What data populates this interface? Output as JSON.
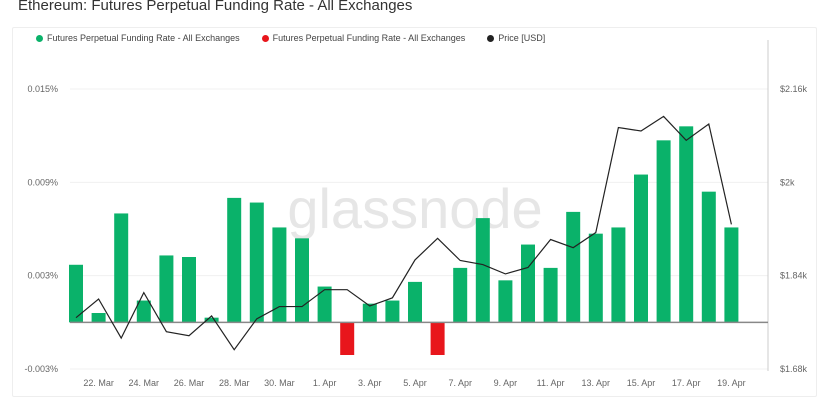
{
  "title": "Ethereum: Futures Perpetual Funding Rate - All Exchanges",
  "watermark": "glassnode",
  "chart_data": {
    "type": "bar",
    "title": "Ethereum: Futures Perpetual Funding Rate - All Exchanges",
    "legend": [
      {
        "name": "Futures Perpetual Funding Rate - All Exchanges",
        "color": "#0ab26a"
      },
      {
        "name": "Futures Perpetual Funding Rate - All Exchanges",
        "color": "#e8161c"
      },
      {
        "name": "Price [USD]",
        "color": "#222222"
      }
    ],
    "legend_placement": "top-left",
    "x": [
      "21 Mar",
      "22 Mar",
      "23 Mar",
      "24 Mar",
      "25 Mar",
      "26 Mar",
      "27 Mar",
      "28 Mar",
      "29 Mar",
      "30 Mar",
      "31 Mar",
      "1 Apr",
      "2 Apr",
      "3 Apr",
      "4 Apr",
      "5 Apr",
      "6 Apr",
      "7 Apr",
      "8 Apr",
      "9 Apr",
      "10 Apr",
      "11 Apr",
      "12 Apr",
      "13 Apr",
      "14 Apr",
      "15 Apr",
      "16 Apr",
      "17 Apr",
      "18 Apr",
      "19 Apr"
    ],
    "x_ticks": [
      "22. Mar",
      "24. Mar",
      "26. Mar",
      "28. Mar",
      "30. Mar",
      "1. Apr",
      "3. Apr",
      "5. Apr",
      "7. Apr",
      "9. Apr",
      "11. Apr",
      "13. Apr",
      "15. Apr",
      "17. Apr",
      "19. Apr"
    ],
    "series": [
      {
        "name": "Futures Perpetual Funding Rate - All Exchanges",
        "type": "bar",
        "axis": "left",
        "unit": "%",
        "values": [
          0.0037,
          0.0006,
          0.007,
          0.0014,
          0.0043,
          0.0042,
          0.0003,
          0.008,
          0.0077,
          0.0061,
          0.0054,
          0.0023,
          -0.0021,
          0.0012,
          0.0014,
          0.0026,
          -0.0021,
          0.0035,
          0.0067,
          0.0027,
          0.005,
          0.0035,
          0.0071,
          0.0057,
          0.0061,
          0.0095,
          0.0117,
          0.0126,
          0.0084,
          0.0061
        ]
      },
      {
        "name": "Price [USD]",
        "type": "line",
        "axis": "right",
        "values": [
          1768,
          1800,
          1733,
          1811,
          1744,
          1737,
          1771,
          1713,
          1766,
          1787,
          1787,
          1816,
          1816,
          1788,
          1802,
          1867,
          1904,
          1866,
          1859,
          1843,
          1854,
          1902,
          1888,
          1914,
          2094,
          2088,
          2113,
          2072,
          2100,
          1928
        ]
      }
    ],
    "y_left": {
      "ticks": [
        "-0.003%",
        "0.003%",
        "0.009%",
        "0.015%"
      ],
      "tick_values": [
        -0.003,
        0.003,
        0.009,
        0.015
      ],
      "ylim": [
        -0.003,
        0.015
      ]
    },
    "y_right": {
      "ticks": [
        "$1.68k",
        "$1.84k",
        "$2k",
        "$2.16k"
      ],
      "tick_values": [
        1680,
        1840,
        2000,
        2160
      ],
      "ylim": [
        1680,
        2160
      ]
    },
    "positive_color": "#0ab26a",
    "negative_color": "#e8161c",
    "grid": true
  }
}
